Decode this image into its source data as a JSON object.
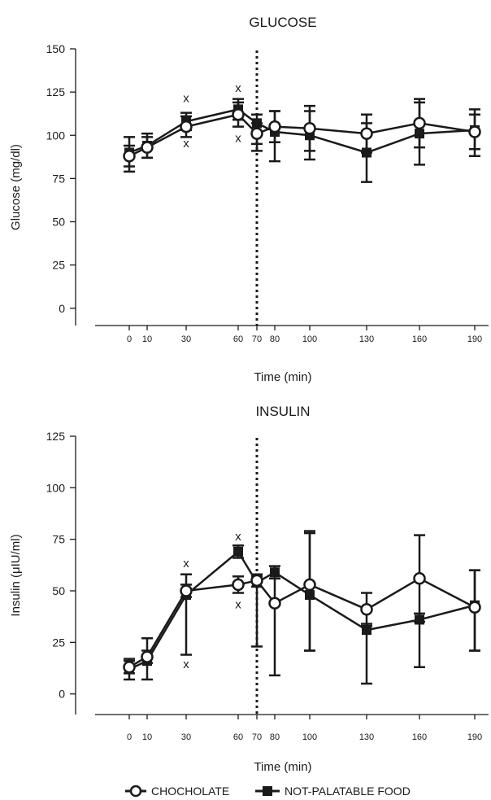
{
  "chart_data": [
    {
      "type": "line",
      "title": "GLUCOSE",
      "xlabel": "Time (min)",
      "ylabel": "Glucose (mg/dl)",
      "x": [
        0,
        10,
        30,
        60,
        70,
        80,
        100,
        130,
        160,
        190
      ],
      "x_tick_labels": [
        "0",
        "10",
        "30",
        "60",
        "70",
        "80",
        "100",
        "130",
        "160",
        "190"
      ],
      "y_ticks": [
        0,
        25,
        50,
        75,
        100,
        125,
        150
      ],
      "ylim": [
        -10,
        150
      ],
      "vline_x": 70,
      "series": [
        {
          "name": "CHOCHOLATE",
          "marker": "open-circle",
          "values": [
            88,
            93,
            105,
            112,
            101,
            105,
            104,
            101,
            107,
            102
          ],
          "err_up": [
            6,
            6,
            6,
            7,
            6,
            9,
            13,
            11,
            14,
            10
          ],
          "err_down": [
            6,
            6,
            6,
            7,
            6,
            9,
            13,
            11,
            14,
            10
          ]
        },
        {
          "name": "NOT-PALATABLE FOOD",
          "marker": "filled-square",
          "values": [
            90,
            94,
            108,
            115,
            107,
            102,
            100,
            90,
            101,
            103
          ],
          "err_up": [
            9,
            7,
            5,
            6,
            5,
            12,
            14,
            17,
            18,
            12
          ],
          "err_down": [
            11,
            7,
            5,
            6,
            16,
            17,
            14,
            17,
            18,
            15
          ]
        }
      ],
      "annotations": [
        {
          "text": "x",
          "x": 30,
          "y": 121
        },
        {
          "text": "x",
          "x": 30,
          "y": 95
        },
        {
          "text": "x",
          "x": 60,
          "y": 127
        },
        {
          "text": "x",
          "x": 60,
          "y": 98
        }
      ]
    },
    {
      "type": "line",
      "title": "INSULIN",
      "xlabel": "Time (min)",
      "ylabel": "Insulin (μIU/ml)",
      "x": [
        0,
        10,
        30,
        60,
        70,
        80,
        100,
        130,
        160,
        190
      ],
      "x_tick_labels": [
        "0",
        "10",
        "30",
        "60",
        "70",
        "80",
        "100",
        "130",
        "160",
        "190"
      ],
      "y_ticks": [
        0,
        25,
        50,
        75,
        100,
        125
      ],
      "ylim": [
        -10,
        125
      ],
      "vline_x": 70,
      "series": [
        {
          "name": "CHOCHOLATE",
          "marker": "open-circle",
          "values": [
            13,
            18,
            50,
            53,
            55,
            44,
            53,
            41,
            56,
            42
          ],
          "err_up": [
            3,
            3,
            3,
            4,
            3,
            12,
            26,
            8,
            21,
            18
          ],
          "err_down": [
            3,
            3,
            3,
            4,
            3,
            35,
            32,
            8,
            21,
            21
          ]
        },
        {
          "name": "NOT-PALATABLE FOOD",
          "marker": "filled-square",
          "values": [
            12,
            16,
            48,
            69,
            54,
            59,
            48,
            31,
            36,
            43
          ],
          "err_up": [
            5,
            11,
            10,
            3,
            3,
            3,
            30,
            3,
            3,
            17
          ],
          "err_down": [
            5,
            9,
            29,
            3,
            31,
            3,
            27,
            26,
            23,
            22
          ]
        }
      ],
      "annotations": [
        {
          "text": "x",
          "x": 30,
          "y": 63
        },
        {
          "text": "x",
          "x": 30,
          "y": 14
        },
        {
          "text": "x",
          "x": 60,
          "y": 76
        },
        {
          "text": "x",
          "x": 60,
          "y": 43
        }
      ]
    }
  ],
  "legend": {
    "placement": "bottom-center",
    "items": [
      {
        "label": "CHOCHOLATE",
        "marker": "open-circle"
      },
      {
        "label": "NOT-PALATABLE FOOD",
        "marker": "filled-square"
      }
    ]
  },
  "colors": {
    "ink": "#1a1a1a",
    "background": "#ffffff"
  }
}
